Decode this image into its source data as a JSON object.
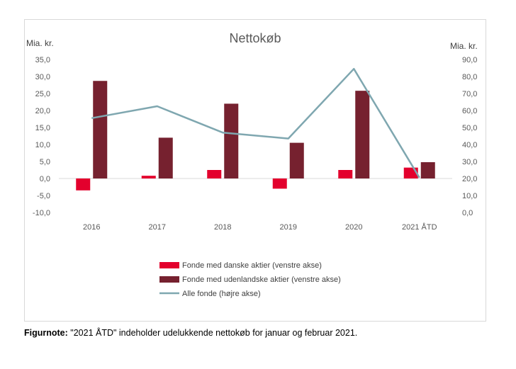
{
  "chart_data": {
    "type": "bar",
    "title": "Nettokøb",
    "ylabel_left": "Mia. kr.",
    "ylabel_right": "Mia. kr.",
    "categories": [
      "2016",
      "2017",
      "2018",
      "2019",
      "2020",
      "2021 ÅTD"
    ],
    "ylim_left": [
      -10,
      35
    ],
    "ylim_right": [
      0,
      90
    ],
    "yticks_left": [
      "-10,0",
      "-5,0",
      "0,0",
      "5,0",
      "10,0",
      "15,0",
      "20,0",
      "25,0",
      "30,0",
      "35,0"
    ],
    "yticks_right": [
      "0,0",
      "10,0",
      "20,0",
      "30,0",
      "40,0",
      "50,0",
      "60,0",
      "70,0",
      "80,0",
      "90,0"
    ],
    "grid": false,
    "legend_position": "bottom",
    "series": [
      {
        "name": "Fonde med danske aktier (venstre akse)",
        "kind": "bar",
        "axis": "left",
        "color": "#e3002d",
        "values": [
          -3.5,
          0.8,
          2.5,
          -3.0,
          2.5,
          3.2
        ]
      },
      {
        "name": "Fonde med udenlandske aktier (venstre akse)",
        "kind": "bar",
        "axis": "left",
        "color": "#76212f",
        "values": [
          28.7,
          12.0,
          22.0,
          10.5,
          25.8,
          4.8
        ]
      },
      {
        "name": "Alle fonde (højre akse)",
        "kind": "line",
        "axis": "right",
        "color": "#7fa7b0",
        "values": [
          55.5,
          62.5,
          47.0,
          43.5,
          84.5,
          20.5
        ]
      }
    ]
  },
  "footnote": {
    "label": "Figurnote:",
    "text": " \"2021 ÅTD\" indeholder udelukkende nettokøb for januar og februar 2021."
  }
}
